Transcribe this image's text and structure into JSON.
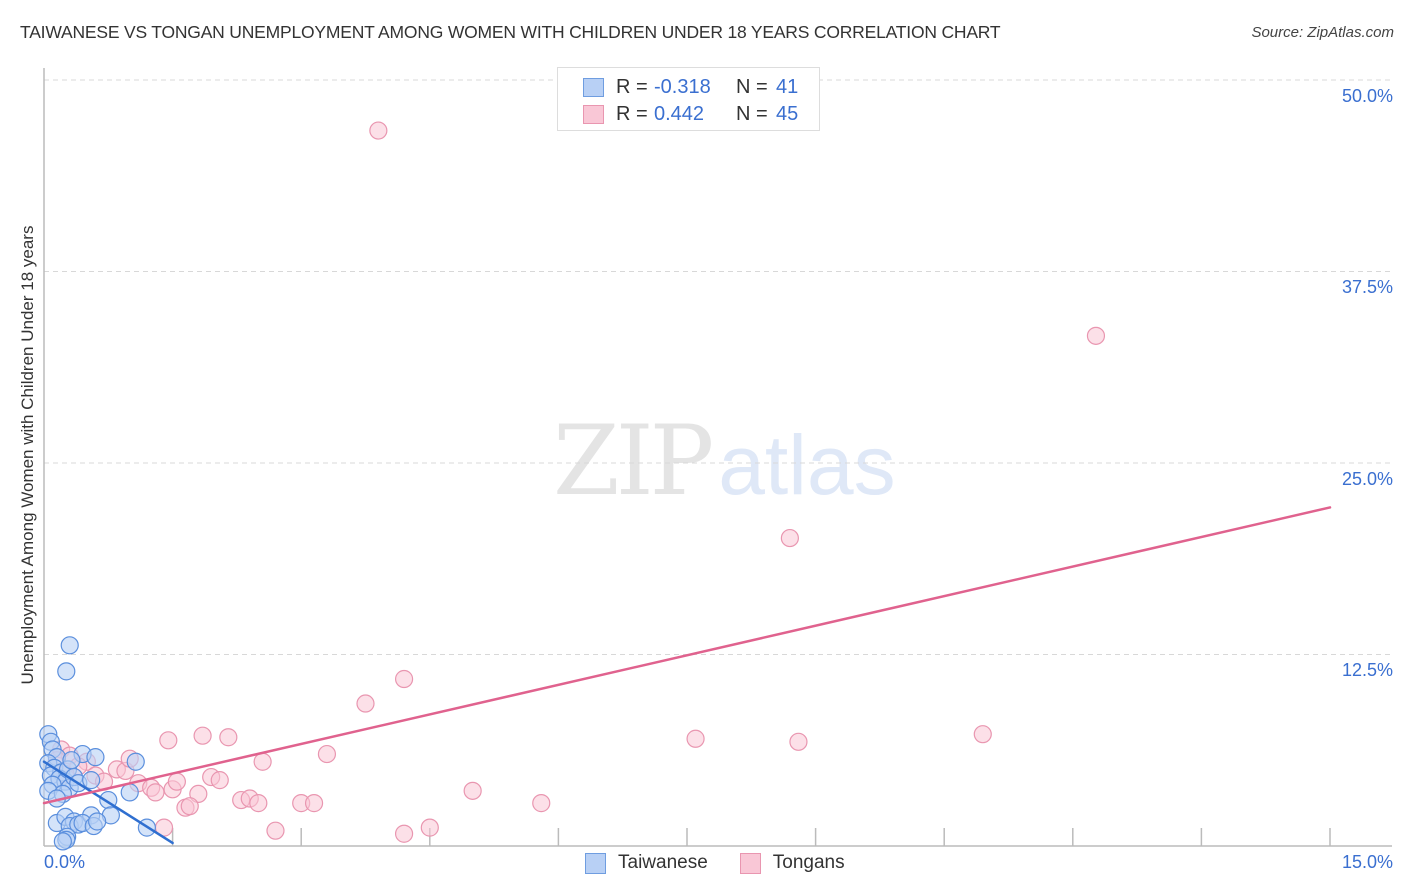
{
  "header": {
    "title": "TAIWANESE VS TONGAN UNEMPLOYMENT AMONG WOMEN WITH CHILDREN UNDER 18 YEARS CORRELATION CHART",
    "source": "Source: ZipAtlas.com"
  },
  "watermark": {
    "zip": "ZIP",
    "atlas": "atlas"
  },
  "stats_box": {
    "rows": [
      {
        "series": "Taiwanese",
        "r_label": "R =",
        "r_value": "-0.318",
        "n_label": "N =",
        "n_value": "41",
        "fill": "#b8d0f5",
        "stroke": "#6f9de0"
      },
      {
        "series": "Tongans",
        "r_label": "R =",
        "r_value": "0.442",
        "n_label": "N =",
        "n_value": "45",
        "fill": "#f9c7d6",
        "stroke": "#e996b0"
      }
    ]
  },
  "legend": {
    "items": [
      {
        "label": "Taiwanese",
        "fill": "#b8d0f5",
        "stroke": "#6f9de0"
      },
      {
        "label": "Tongans",
        "fill": "#f9c7d6",
        "stroke": "#e996b0"
      }
    ]
  },
  "axes": {
    "y_label": "Unemployment Among Women with Children Under 18 years",
    "y_ticks": [
      "50.0%",
      "37.5%",
      "25.0%",
      "12.5%"
    ],
    "x_ticks": {
      "min_label": "0.0%",
      "max_label": "15.0%"
    }
  },
  "colors": {
    "taiwanese_fill": "#b8d0f5",
    "taiwanese_stroke": "#5b8fdd",
    "taiwanese_line": "#2f6fd0",
    "tongans_fill": "#f9c7d6",
    "tongans_stroke": "#e996b0",
    "tongans_line": "#e0628e",
    "tick_label": "#3a6fd0",
    "grid": "#d8d8d8",
    "axis": "#bbbbbb"
  },
  "chart_data": {
    "type": "scatter",
    "title": "TAIWANESE VS TONGAN UNEMPLOYMENT AMONG WOMEN WITH CHILDREN UNDER 18 YEARS CORRELATION CHART",
    "xlabel": "",
    "ylabel": "Unemployment Among Women with Children Under 18 years",
    "xlim": [
      0,
      15
    ],
    "ylim": [
      0,
      50
    ],
    "x_tick_labels": [
      "0.0%",
      "15.0%"
    ],
    "y_tick_labels": [
      "12.5%",
      "25.0%",
      "37.5%",
      "50.0%"
    ],
    "grid": {
      "horizontal_dashed": true,
      "y_values": [
        12.5,
        25.0,
        37.5,
        50.0
      ]
    },
    "legend_position": "bottom-center",
    "series": [
      {
        "name": "Taiwanese",
        "R": -0.318,
        "N": 41,
        "trend_line": {
          "x": [
            0.0,
            1.5
          ],
          "y": [
            5.5,
            0.2
          ]
        },
        "points": [
          [
            0.05,
            7.3
          ],
          [
            0.08,
            6.8
          ],
          [
            0.1,
            6.3
          ],
          [
            0.15,
            5.8
          ],
          [
            0.05,
            5.4
          ],
          [
            0.12,
            5.1
          ],
          [
            0.2,
            4.8
          ],
          [
            0.08,
            4.6
          ],
          [
            0.18,
            4.4
          ],
          [
            0.25,
            4.2
          ],
          [
            0.1,
            4.0
          ],
          [
            0.3,
            3.8
          ],
          [
            0.05,
            3.6
          ],
          [
            0.22,
            3.4
          ],
          [
            0.15,
            3.1
          ],
          [
            0.28,
            5.0
          ],
          [
            0.35,
            4.5
          ],
          [
            0.4,
            4.1
          ],
          [
            0.45,
            6.0
          ],
          [
            0.6,
            5.8
          ],
          [
            0.32,
            5.6
          ],
          [
            0.55,
            4.3
          ],
          [
            0.75,
            3.0
          ],
          [
            1.07,
            5.5
          ],
          [
            0.78,
            2.0
          ],
          [
            0.3,
            13.1
          ],
          [
            0.26,
            11.4
          ],
          [
            0.15,
            1.5
          ],
          [
            0.25,
            1.9
          ],
          [
            0.35,
            1.6
          ],
          [
            0.3,
            1.3
          ],
          [
            0.4,
            1.4
          ],
          [
            0.55,
            2.0
          ],
          [
            0.45,
            1.5
          ],
          [
            0.58,
            1.3
          ],
          [
            0.62,
            1.6
          ],
          [
            0.27,
            0.6
          ],
          [
            0.26,
            0.4
          ],
          [
            0.22,
            0.3
          ],
          [
            1.0,
            3.5
          ],
          [
            1.2,
            1.2
          ]
        ]
      },
      {
        "name": "Tongans",
        "R": 0.442,
        "N": 45,
        "trend_line": {
          "x": [
            0.0,
            15.0
          ],
          "y": [
            2.8,
            22.1
          ]
        },
        "points": [
          [
            3.9,
            46.7
          ],
          [
            12.27,
            33.3
          ],
          [
            8.7,
            20.1
          ],
          [
            4.2,
            10.9
          ],
          [
            3.75,
            9.3
          ],
          [
            1.45,
            6.9
          ],
          [
            1.85,
            7.2
          ],
          [
            2.15,
            7.1
          ],
          [
            2.55,
            5.5
          ],
          [
            3.3,
            6.0
          ],
          [
            7.6,
            7.0
          ],
          [
            8.8,
            6.8
          ],
          [
            10.95,
            7.3
          ],
          [
            0.2,
            6.3
          ],
          [
            0.3,
            5.9
          ],
          [
            0.5,
            5.5
          ],
          [
            0.85,
            5.0
          ],
          [
            0.95,
            4.9
          ],
          [
            1.0,
            5.7
          ],
          [
            0.6,
            4.6
          ],
          [
            0.7,
            4.2
          ],
          [
            1.1,
            4.1
          ],
          [
            1.25,
            3.8
          ],
          [
            1.3,
            3.5
          ],
          [
            1.5,
            3.7
          ],
          [
            1.55,
            4.2
          ],
          [
            1.95,
            4.5
          ],
          [
            2.05,
            4.3
          ],
          [
            1.8,
            3.4
          ],
          [
            1.65,
            2.5
          ],
          [
            1.7,
            2.6
          ],
          [
            2.3,
            3.0
          ],
          [
            2.4,
            3.1
          ],
          [
            2.5,
            2.8
          ],
          [
            3.0,
            2.8
          ],
          [
            3.15,
            2.8
          ],
          [
            5.0,
            3.6
          ],
          [
            5.8,
            2.8
          ],
          [
            1.4,
            1.2
          ],
          [
            2.7,
            1.0
          ],
          [
            4.2,
            0.8
          ],
          [
            4.5,
            1.2
          ],
          [
            0.4,
            5.2
          ],
          [
            0.15,
            5.6
          ],
          [
            0.25,
            4.7
          ]
        ]
      }
    ]
  }
}
